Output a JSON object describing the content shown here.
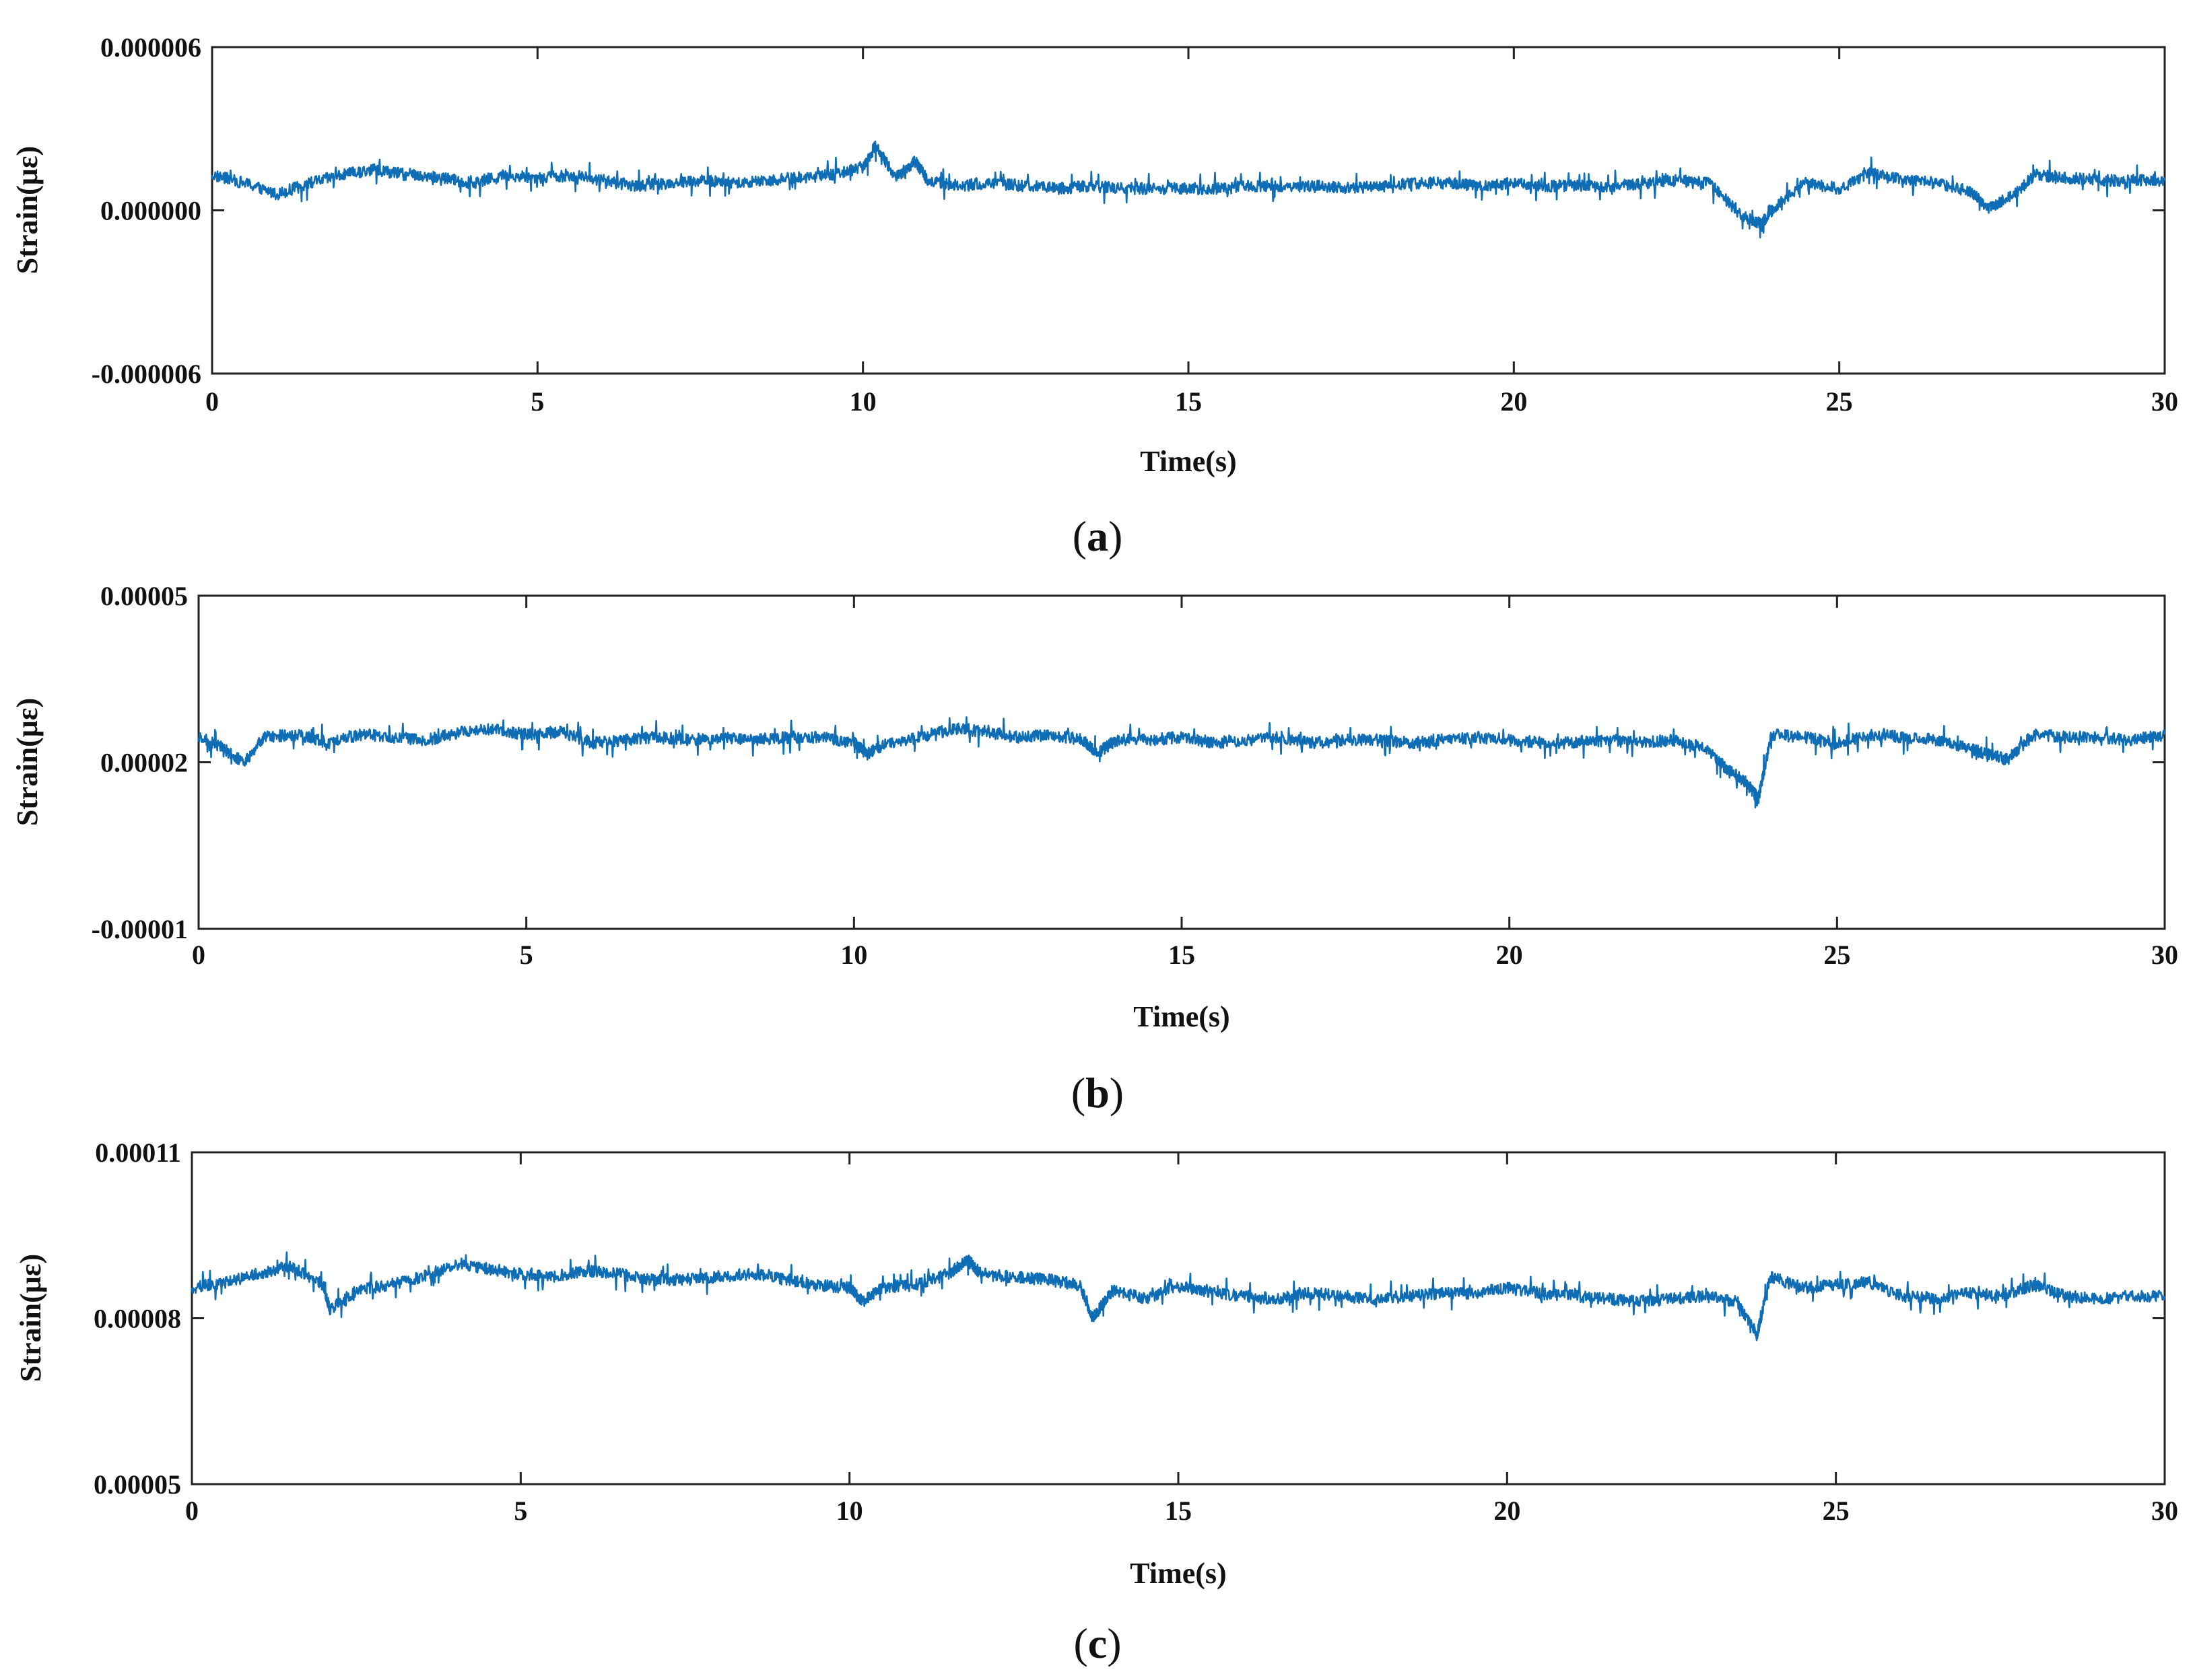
{
  "colors": {
    "series": "#0f6db5",
    "axis": "#222222"
  },
  "chart_data": [
    {
      "type": "line",
      "caption": "a",
      "xlabel": "Time(s)",
      "ylabel": "Strain(με)",
      "xlim": [
        0,
        30
      ],
      "ylim": [
        -6e-06,
        6e-06
      ],
      "xticks": [
        0,
        5,
        10,
        15,
        20,
        25,
        30
      ],
      "xtick_labels": [
        "0",
        "5",
        "10",
        "15",
        "20",
        "25",
        "30"
      ],
      "yticks": [
        -6e-06,
        0,
        6e-06
      ],
      "ytick_labels": [
        "-0.000006",
        "0.000000",
        "0.000006"
      ],
      "grid": false,
      "series": [
        {
          "x": [
            0,
            0.5,
            1,
            1.5,
            2,
            2.5,
            3,
            3.5,
            4,
            4.5,
            5,
            5.5,
            6,
            6.5,
            7,
            7.5,
            8,
            8.5,
            9,
            9.5,
            10,
            10.2,
            10.5,
            10.8,
            11,
            11.5,
            12,
            12.5,
            13,
            13.5,
            14,
            14.5,
            15,
            15.5,
            16,
            16.5,
            17,
            17.5,
            18,
            18.5,
            19,
            19.5,
            20,
            20.5,
            21,
            21.5,
            22,
            22.5,
            23,
            23.5,
            23.8,
            24,
            24.5,
            25,
            25.5,
            26,
            26.5,
            27,
            27.3,
            27.7,
            28,
            28.5,
            29,
            29.5,
            30
          ],
          "values": [
            1.3e-06,
            1e-06,
            6e-07,
            1e-06,
            1.3e-06,
            1.5e-06,
            1.3e-06,
            1.2e-06,
            1e-06,
            1.3e-06,
            1.2e-06,
            1.3e-06,
            1.1e-06,
            9e-07,
            1e-06,
            1.1e-06,
            1e-06,
            1.1e-06,
            1.2e-06,
            1.3e-06,
            1.6e-06,
            2.4e-06,
            1.2e-06,
            1.8e-06,
            1.1e-06,
            9e-07,
            1e-06,
            9e-07,
            8e-07,
            9e-07,
            8e-07,
            8e-07,
            8e-07,
            8e-07,
            9e-07,
            9e-07,
            9e-07,
            8e-07,
            9e-07,
            1e-06,
            1e-06,
            9e-07,
            1e-06,
            9e-07,
            9e-07,
            9e-07,
            1e-06,
            1.1e-06,
            1e-06,
            -2e-07,
            -5e-07,
            1e-07,
            1e-06,
            8e-07,
            1.4e-06,
            1.1e-06,
            1e-06,
            7e-07,
            1e-07,
            6e-07,
            1.3e-06,
            1.2e-06,
            1.1e-06,
            1.1e-06,
            1.1e-06
          ]
        }
      ]
    },
    {
      "type": "line",
      "caption": "b",
      "xlabel": "Time(s)",
      "ylabel": "Strain(με)",
      "xlim": [
        0,
        30
      ],
      "ylim": [
        -1e-05,
        5e-05
      ],
      "xticks": [
        0,
        5,
        10,
        15,
        20,
        25,
        30
      ],
      "xtick_labels": [
        "0",
        "5",
        "10",
        "15",
        "20",
        "25",
        "30"
      ],
      "yticks": [
        -1e-05,
        2e-05,
        5e-05
      ],
      "ytick_labels": [
        "-0.00001",
        "0.00002",
        "0.00005"
      ],
      "grid": false,
      "series": [
        {
          "x": [
            0,
            0.3,
            0.7,
            1,
            1.5,
            2,
            2.5,
            3,
            3.5,
            4,
            4.5,
            5,
            5.5,
            6,
            6.5,
            7,
            7.5,
            8,
            8.5,
            9,
            9.5,
            10,
            10.2,
            10.5,
            11,
            11.5,
            12,
            12.5,
            13,
            13.5,
            13.7,
            14,
            14.5,
            15,
            15.5,
            16,
            16.5,
            17,
            17.5,
            18,
            18.5,
            19,
            19.5,
            20,
            20.5,
            21,
            21.5,
            22,
            22.5,
            23,
            23.3,
            23.6,
            23.8,
            24,
            24.5,
            25,
            25.5,
            26,
            26.5,
            27,
            27.3,
            27.6,
            28,
            28.5,
            29,
            29.5,
            30
          ],
          "values": [
            2.45e-05,
            2.3e-05,
            2e-05,
            2.45e-05,
            2.5e-05,
            2.35e-05,
            2.5e-05,
            2.45e-05,
            2.4e-05,
            2.55e-05,
            2.6e-05,
            2.5e-05,
            2.55e-05,
            2.35e-05,
            2.4e-05,
            2.45e-05,
            2.4e-05,
            2.45e-05,
            2.4e-05,
            2.45e-05,
            2.45e-05,
            2.35e-05,
            2.15e-05,
            2.35e-05,
            2.45e-05,
            2.6e-05,
            2.55e-05,
            2.45e-05,
            2.5e-05,
            2.4e-05,
            2.15e-05,
            2.4e-05,
            2.4e-05,
            2.45e-05,
            2.35e-05,
            2.4e-05,
            2.45e-05,
            2.35e-05,
            2.4e-05,
            2.4e-05,
            2.35e-05,
            2.4e-05,
            2.45e-05,
            2.4e-05,
            2.35e-05,
            2.35e-05,
            2.4e-05,
            2.35e-05,
            2.4e-05,
            2.25e-05,
            1.9e-05,
            1.65e-05,
            1.35e-05,
            2.5e-05,
            2.45e-05,
            2.35e-05,
            2.5e-05,
            2.45e-05,
            2.4e-05,
            2.25e-05,
            2.15e-05,
            2.05e-05,
            2.5e-05,
            2.45e-05,
            2.45e-05,
            2.4e-05,
            2.5e-05
          ]
        }
      ]
    },
    {
      "type": "line",
      "caption": "c",
      "xlabel": "Time(s)",
      "ylabel": "Strain(με)",
      "xlim": [
        0,
        30
      ],
      "ylim": [
        5e-05,
        0.00011
      ],
      "xticks": [
        0,
        5,
        10,
        15,
        20,
        25,
        30
      ],
      "xtick_labels": [
        "0",
        "5",
        "10",
        "15",
        "20",
        "25",
        "30"
      ],
      "yticks": [
        5e-05,
        8e-05,
        0.00011
      ],
      "ytick_labels": [
        "0.00005",
        "0.00008",
        "0.00011"
      ],
      "grid": false,
      "series": [
        {
          "x": [
            0,
            0.5,
            1,
            1.5,
            2,
            2.1,
            2.5,
            3,
            3.5,
            4,
            4.5,
            5,
            5.5,
            6,
            6.5,
            7,
            7.5,
            8,
            8.5,
            9,
            9.5,
            10,
            10.2,
            10.5,
            11,
            11.5,
            11.8,
            12,
            12.5,
            13,
            13.5,
            13.7,
            14,
            14.5,
            15,
            15.5,
            16,
            16.5,
            17,
            17.5,
            18,
            18.5,
            19,
            19.5,
            20,
            20.5,
            21,
            21.5,
            22,
            22.5,
            23,
            23.5,
            23.8,
            24,
            24.5,
            25,
            25.5,
            26,
            26.5,
            27,
            27.5,
            28,
            28.5,
            29,
            29.5,
            30
          ],
          "values": [
            8.55e-05,
            8.65e-05,
            8.8e-05,
            8.95e-05,
            8.6e-05,
            8.15e-05,
            8.5e-05,
            8.6e-05,
            8.75e-05,
            8.95e-05,
            8.9e-05,
            8.8e-05,
            8.75e-05,
            8.85e-05,
            8.8e-05,
            8.7e-05,
            8.7e-05,
            8.75e-05,
            8.8e-05,
            8.7e-05,
            8.6e-05,
            8.55e-05,
            8.3e-05,
            8.55e-05,
            8.6e-05,
            8.8e-05,
            9.05e-05,
            8.8e-05,
            8.75e-05,
            8.7e-05,
            8.6e-05,
            8e-05,
            8.5e-05,
            8.35e-05,
            8.6e-05,
            8.45e-05,
            8.4e-05,
            8.35e-05,
            8.45e-05,
            8.4e-05,
            8.35e-05,
            8.4e-05,
            8.45e-05,
            8.45e-05,
            8.55e-05,
            8.45e-05,
            8.4e-05,
            8.35e-05,
            8.3e-05,
            8.35e-05,
            8.4e-05,
            8.3e-05,
            7.7e-05,
            8.75e-05,
            8.55e-05,
            8.6e-05,
            8.65e-05,
            8.4e-05,
            8.35e-05,
            8.45e-05,
            8.4e-05,
            8.6e-05,
            8.4e-05,
            8.35e-05,
            8.4e-05,
            8.4e-05
          ]
        }
      ]
    }
  ]
}
